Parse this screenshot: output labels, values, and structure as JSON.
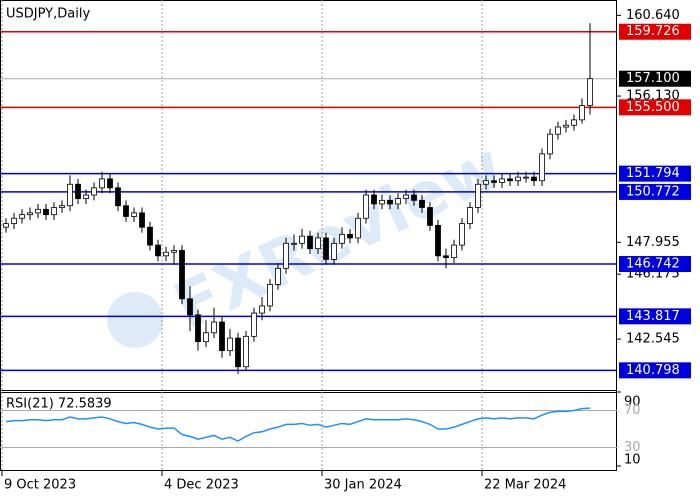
{
  "chart_data": [
    {
      "type": "candlestick",
      "title": "USDJPY,Daily",
      "watermark": "FXReview",
      "categories": [
        "9 Oct 2023",
        null,
        null,
        null,
        null,
        null,
        null,
        null,
        null,
        null,
        null,
        null,
        null,
        null,
        null,
        null,
        null,
        null,
        null,
        null,
        "4 Dec 2023",
        null,
        null,
        null,
        null,
        null,
        null,
        null,
        null,
        null,
        null,
        null,
        null,
        null,
        null,
        null,
        null,
        null,
        null,
        null,
        "30 Jan 2024",
        null,
        null,
        null,
        null,
        null,
        null,
        null,
        null,
        null,
        null,
        null,
        null,
        null,
        null,
        null,
        null,
        null,
        null,
        null,
        "22 Mar 2024",
        null,
        null,
        null,
        null,
        null,
        null,
        null,
        null,
        null,
        null,
        null,
        null,
        null
      ],
      "open": [
        148.8,
        149.0,
        149.3,
        149.5,
        149.6,
        149.8,
        149.5,
        149.9,
        150.0,
        151.2,
        150.4,
        150.6,
        151.0,
        151.5,
        151.0,
        150.0,
        149.4,
        149.6,
        148.8,
        147.8,
        147.2,
        147.4,
        147.5,
        144.8,
        143.9,
        142.4,
        142.9,
        143.5,
        141.9,
        142.6,
        141.0,
        142.7,
        144.0,
        144.4,
        145.6,
        146.5,
        147.9,
        147.9,
        148.3,
        147.6,
        148.2,
        147.0,
        147.9,
        148.4,
        148.2,
        149.3,
        150.6,
        150.1,
        150.3,
        150.1,
        150.4,
        150.6,
        150.3,
        149.9,
        148.9,
        147.2,
        147.1,
        147.8,
        149.0,
        149.9,
        151.2,
        151.4,
        151.3,
        151.5,
        151.4,
        151.6,
        151.6,
        151.4,
        152.9,
        154.0,
        154.4,
        154.5,
        154.8,
        155.6
      ],
      "high": [
        149.3,
        149.6,
        149.8,
        149.9,
        150.1,
        150.1,
        150.2,
        150.3,
        151.7,
        151.5,
        150.9,
        151.3,
        151.9,
        151.8,
        151.3,
        150.3,
        149.9,
        149.9,
        149.1,
        148.1,
        147.7,
        147.8,
        147.8,
        145.5,
        144.2,
        143.6,
        144.3,
        143.8,
        143.1,
        142.9,
        143.0,
        144.3,
        144.9,
        145.9,
        146.8,
        148.2,
        148.4,
        148.7,
        148.6,
        148.5,
        148.5,
        148.2,
        148.8,
        148.7,
        149.6,
        150.9,
        150.9,
        150.6,
        150.6,
        150.7,
        150.9,
        150.9,
        150.6,
        150.2,
        149.2,
        147.6,
        148.1,
        149.3,
        150.2,
        151.5,
        151.7,
        151.7,
        151.8,
        151.8,
        151.9,
        151.9,
        151.9,
        153.2,
        154.3,
        154.7,
        154.8,
        155.1,
        156.0,
        160.2
      ],
      "low": [
        148.5,
        148.7,
        149.0,
        149.2,
        149.3,
        149.2,
        149.2,
        149.6,
        149.7,
        150.1,
        150.1,
        150.3,
        150.7,
        150.7,
        149.7,
        149.1,
        149.1,
        148.5,
        147.5,
        146.9,
        146.9,
        146.7,
        144.5,
        143.0,
        141.9,
        142.1,
        142.6,
        141.5,
        141.6,
        140.6,
        140.8,
        142.4,
        143.6,
        144.1,
        145.3,
        146.2,
        147.5,
        147.6,
        147.3,
        147.3,
        146.7,
        146.7,
        147.6,
        147.9,
        147.9,
        149.0,
        149.8,
        149.8,
        149.8,
        149.8,
        150.1,
        150.0,
        149.6,
        148.6,
        146.9,
        146.5,
        146.8,
        147.5,
        148.7,
        149.6,
        150.9,
        151.0,
        151.0,
        151.1,
        151.1,
        151.3,
        151.1,
        151.1,
        152.6,
        153.7,
        154.1,
        154.2,
        154.6,
        155.1
      ],
      "close": [
        149.0,
        149.3,
        149.5,
        149.6,
        149.8,
        149.5,
        149.9,
        150.0,
        151.2,
        150.4,
        150.6,
        151.0,
        151.5,
        151.0,
        150.0,
        149.4,
        149.6,
        148.8,
        147.8,
        147.2,
        147.4,
        147.5,
        144.8,
        143.9,
        142.4,
        142.9,
        143.5,
        141.9,
        142.6,
        141.0,
        142.7,
        144.0,
        144.4,
        145.6,
        146.5,
        147.9,
        147.9,
        148.3,
        147.6,
        148.2,
        147.0,
        147.9,
        148.4,
        148.2,
        149.3,
        150.6,
        150.1,
        150.3,
        150.1,
        150.4,
        150.6,
        150.3,
        149.9,
        148.9,
        147.2,
        147.1,
        147.8,
        149.0,
        149.9,
        151.2,
        151.4,
        151.3,
        151.5,
        151.4,
        151.6,
        151.6,
        151.4,
        152.9,
        154.0,
        154.4,
        154.5,
        154.8,
        155.6,
        157.1
      ],
      "ylim": [
        139.7,
        161.5
      ],
      "yticks": [
        {
          "value": 160.64,
          "label": "160.640"
        },
        {
          "value": 156.13,
          "label": "156.130"
        },
        147.955,
        146.175,
        142.545
      ],
      "levels": [
        {
          "value": 159.726,
          "label": "159.726",
          "color": "#e00000"
        },
        {
          "value": 157.1,
          "label": "157.100",
          "color": "#000000"
        },
        {
          "value": 155.5,
          "label": "155.500",
          "color": "#e00000"
        },
        {
          "value": 151.794,
          "label": "151.794",
          "color": "#0000dd"
        },
        {
          "value": 150.772,
          "label": "150.772",
          "color": "#0000dd"
        },
        {
          "value": 146.742,
          "label": "146.742",
          "color": "#0000dd"
        },
        {
          "value": 143.817,
          "label": "143.817",
          "color": "#0000dd"
        },
        {
          "value": 140.798,
          "label": "140.798",
          "color": "#0000dd"
        }
      ]
    },
    {
      "type": "line",
      "title": "RSI(21) 72.5839",
      "color": "#1e90ff",
      "values": [
        58,
        59,
        59,
        60,
        60,
        59,
        60,
        60,
        63,
        61,
        61,
        62,
        63,
        61,
        58,
        56,
        57,
        55,
        52,
        50,
        51,
        51,
        44,
        42,
        39,
        41,
        43,
        39,
        41,
        37,
        42,
        46,
        47,
        50,
        52,
        55,
        55,
        56,
        54,
        55,
        52,
        54,
        56,
        55,
        58,
        61,
        60,
        60,
        60,
        60,
        61,
        60,
        58,
        55,
        50,
        50,
        52,
        55,
        58,
        61,
        62,
        61,
        62,
        61,
        62,
        62,
        61,
        65,
        68,
        69,
        69,
        70,
        72,
        72.5839
      ],
      "ylim": [
        10,
        90
      ],
      "yticks": [
        10,
        90
      ],
      "levels": [
        70,
        30
      ]
    }
  ]
}
